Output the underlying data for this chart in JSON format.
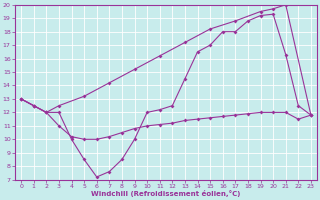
{
  "xlabel": "Windchill (Refroidissement éolien,°C)",
  "background_color": "#c8ecec",
  "grid_color": "#ffffff",
  "line_color": "#993399",
  "xlim": [
    -0.5,
    23.5
  ],
  "ylim": [
    7,
    20
  ],
  "xticks": [
    0,
    1,
    2,
    3,
    4,
    5,
    6,
    7,
    8,
    9,
    10,
    11,
    12,
    13,
    14,
    15,
    16,
    17,
    18,
    19,
    20,
    21,
    22,
    23
  ],
  "yticks": [
    7,
    8,
    9,
    10,
    11,
    12,
    13,
    14,
    15,
    16,
    17,
    18,
    19,
    20
  ],
  "line1_x": [
    0,
    1,
    2,
    3,
    4,
    5,
    6,
    7,
    8,
    9,
    10,
    11,
    12,
    13,
    14,
    15,
    16,
    17,
    18,
    19,
    20,
    21,
    22,
    23
  ],
  "line1_y": [
    13,
    12.5,
    12,
    12,
    10,
    8.5,
    7.2,
    7.6,
    8.5,
    10,
    12,
    12.2,
    12.5,
    14.5,
    16.5,
    17,
    18,
    18,
    18.8,
    19.2,
    19.3,
    16.3,
    12.5,
    11.8
  ],
  "line2_x": [
    0,
    1,
    2,
    3,
    5,
    7,
    9,
    11,
    13,
    15,
    17,
    19,
    20,
    21,
    23
  ],
  "line2_y": [
    13,
    12.5,
    12,
    12.5,
    13.2,
    14.2,
    15.2,
    16.2,
    17.2,
    18.2,
    18.8,
    19.5,
    19.7,
    20.0,
    11.8
  ],
  "line3_x": [
    0,
    1,
    2,
    3,
    4,
    5,
    6,
    7,
    8,
    9,
    10,
    11,
    12,
    13,
    14,
    15,
    16,
    17,
    18,
    19,
    20,
    21,
    22,
    23
  ],
  "line3_y": [
    13,
    12.5,
    12,
    11,
    10.2,
    10,
    10,
    10.2,
    10.5,
    10.8,
    11,
    11.1,
    11.2,
    11.4,
    11.5,
    11.6,
    11.7,
    11.8,
    11.9,
    12,
    12,
    12,
    11.5,
    11.8
  ]
}
